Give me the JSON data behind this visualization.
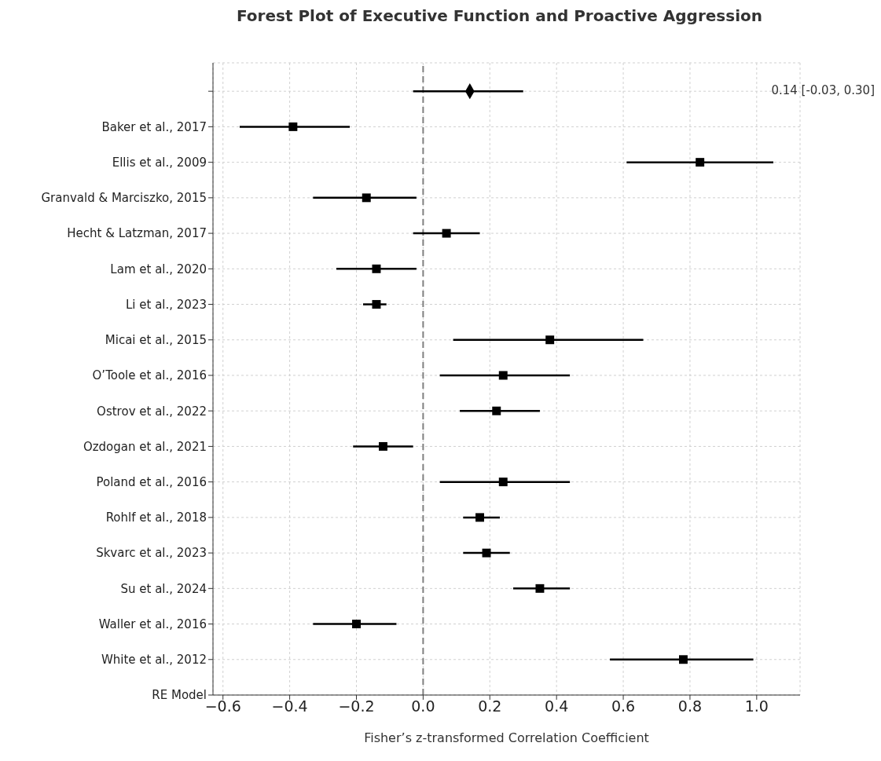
{
  "chart_data": {
    "type": "scatter",
    "orientation": "horizontal",
    "title": "Forest Plot of Executive Function and Proactive Aggression",
    "xlabel": "Fisher’s z-transformed Correlation Coefficient",
    "categories": [
      null,
      "Baker et al., 2017",
      "Ellis et al., 2009",
      "Granvald & Marciszko, 2015",
      "Hecht & Latzman, 2017",
      "Lam et al., 2020",
      "Li et al., 2023",
      "Micai et al., 2015",
      "O’Toole et al., 2016",
      "Ostrov et al., 2022",
      "Ozdogan et al., 2021",
      "Poland et al., 2016",
      "Rohlf et al., 2018",
      "Skvarc et al., 2023",
      "Su et al., 2024",
      "Waller et al., 2016",
      "White et al., 2012",
      "RE Model"
    ],
    "series": [
      {
        "color": "#000000",
        "marker": "diamond",
        "values": [
          0.14,
          null,
          null,
          null,
          null,
          null,
          null,
          null,
          null,
          null,
          null,
          null,
          null,
          null,
          null,
          null,
          null,
          null
        ],
        "errors": [
          [
            -0.03,
            0.3
          ],
          null,
          null,
          null,
          null,
          null,
          null,
          null,
          null,
          null,
          null,
          null,
          null,
          null,
          null,
          null,
          null,
          null
        ]
      },
      {
        "color": "#000000",
        "marker": "square",
        "values": [
          null,
          -0.39,
          0.83,
          -0.17,
          0.07,
          -0.14,
          -0.14,
          0.38,
          0.24,
          0.22,
          -0.12,
          0.24,
          0.17,
          0.19,
          0.35,
          -0.2,
          0.78,
          null
        ],
        "errors": [
          null,
          [
            -0.55,
            -0.22
          ],
          [
            0.61,
            1.05
          ],
          [
            -0.33,
            -0.02
          ],
          [
            -0.03,
            0.17
          ],
          [
            -0.26,
            -0.02
          ],
          [
            -0.18,
            -0.11
          ],
          [
            0.09,
            0.66
          ],
          [
            0.05,
            0.44
          ],
          [
            0.11,
            0.35
          ],
          [
            -0.21,
            -0.03
          ],
          [
            0.05,
            0.44
          ],
          [
            0.12,
            0.23
          ],
          [
            0.12,
            0.26
          ],
          [
            0.27,
            0.44
          ],
          [
            -0.33,
            -0.08
          ],
          [
            0.56,
            0.99
          ],
          null
        ]
      }
    ],
    "xlim": [
      -0.63,
      1.13
    ],
    "xticks": [
      {
        "value": -0.6,
        "label": "−0.6"
      },
      {
        "value": -0.4,
        "label": "−0.4"
      },
      {
        "value": -0.2,
        "label": "−0.2"
      },
      {
        "value": 0,
        "label": "0.0"
      },
      {
        "value": 0.2,
        "label": "0.2"
      },
      {
        "value": 0.4,
        "label": "0.4"
      },
      {
        "value": 0.6,
        "label": "0.6"
      },
      {
        "value": 0.8,
        "label": "0.8"
      },
      {
        "value": 1.0,
        "label": "1.0"
      }
    ],
    "ref_lines": [
      {
        "axis": "x",
        "value": 0,
        "color": "#808080",
        "line_style": "dashed"
      }
    ],
    "annotations": [
      "0.14 [-0.03, 0.30]"
    ],
    "grid": true
  }
}
